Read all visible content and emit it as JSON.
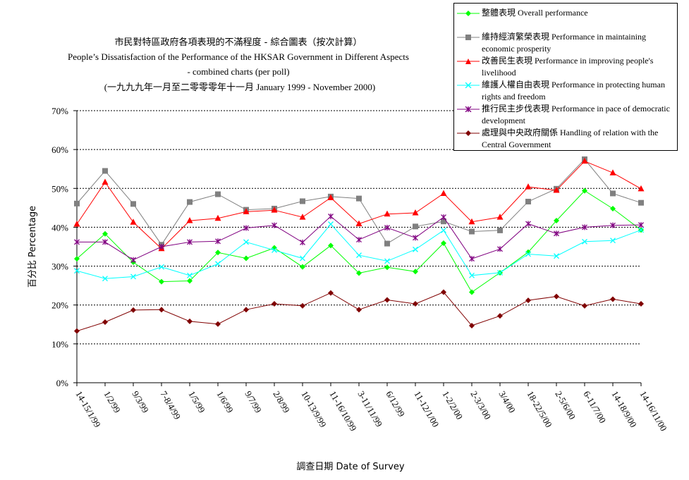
{
  "chart_data": {
    "type": "line",
    "title_lines": [
      "市民對特區政府各項表現的不滿程度  -  綜合圖表（按次計算）",
      "People’s Dissatisfaction of the Performance of the HKSAR Government in Different Aspects",
      "- combined charts  (per poll)",
      "(一九九九年一月至二零零零年十一月 January 1999 - November 2000)"
    ],
    "ylabel": "百分比 Percentage",
    "xlabel": "調查日期 Date of Survey",
    "ylim": [
      0,
      70
    ],
    "yticks": [
      "0%",
      "10%",
      "20%",
      "30%",
      "40%",
      "50%",
      "60%",
      "70%"
    ],
    "grid": "horizontal dotted",
    "legend_position": "top-right",
    "categories": [
      "14-15/1/99",
      "1/2/99",
      "9/3/99",
      "7-8/4/99",
      "1/5/99",
      "1/6/99",
      "9/7/99",
      "2/8/99",
      "10-13/9/99",
      "11-16/10/99",
      "3-11/11/99",
      "6/12/99",
      "11-12/1/00",
      "1-2/2/00",
      "2-3/3/00",
      "3/4/00",
      "18-22/5/00",
      "2-5/6/00",
      "6-11/7/00",
      "14-18/9/00",
      "14-16/11/00"
    ],
    "series": [
      {
        "name": "整體表現 Overall performance",
        "color": "#00ff00",
        "marker": "diamond",
        "values": [
          31.9,
          38.3,
          31.0,
          26.0,
          26.2,
          33.5,
          32.0,
          34.7,
          29.8,
          35.3,
          28.2,
          29.7,
          28.6,
          35.9,
          23.3,
          28.3,
          33.6,
          41.7,
          49.4,
          44.8,
          39.3
        ]
      },
      {
        "name": "維持經濟繁榮表現 Performance in maintaining economic prosperity",
        "color": "#808080",
        "marker": "square",
        "values": [
          46.1,
          54.5,
          46.0,
          35.5,
          46.5,
          48.5,
          44.5,
          44.8,
          46.7,
          47.9,
          47.4,
          35.8,
          40.2,
          41.5,
          38.9,
          39.2,
          46.6,
          49.9,
          57.5,
          48.7,
          46.3
        ]
      },
      {
        "name": "改善民生表現 Performance in improving people's livelihood",
        "color": "#ff0000",
        "marker": "triangle",
        "values": [
          40.8,
          51.6,
          41.3,
          34.5,
          41.7,
          42.3,
          44.0,
          44.4,
          42.6,
          47.6,
          40.9,
          43.4,
          43.7,
          48.7,
          41.4,
          42.6,
          50.4,
          49.5,
          57.0,
          54.0,
          49.9
        ]
      },
      {
        "name": "維護人權自由表現 Performance in protecting human rights and freedom",
        "color": "#00ffff",
        "marker": "x",
        "values": [
          28.8,
          26.8,
          27.3,
          29.8,
          27.6,
          30.6,
          36.2,
          34.1,
          32.0,
          40.8,
          32.8,
          31.3,
          34.3,
          39.2,
          27.6,
          28.3,
          33.1,
          32.6,
          36.3,
          36.6,
          39.3
        ]
      },
      {
        "name": "推行民主步伐表現 Performance in pace of democratic development",
        "color": "#800080",
        "marker": "star",
        "values": [
          36.2,
          36.2,
          31.6,
          35.0,
          36.2,
          36.4,
          39.8,
          40.5,
          36.1,
          42.8,
          36.8,
          39.9,
          37.3,
          42.6,
          31.9,
          34.4,
          40.9,
          38.4,
          40.0,
          40.5,
          40.6
        ]
      },
      {
        "name": "處理與中央政府關係 Handling of relation with the Central Government",
        "color": "#800000",
        "marker": "diamond",
        "values": [
          13.3,
          15.6,
          18.7,
          18.8,
          15.8,
          15.1,
          18.8,
          20.3,
          19.8,
          23.1,
          18.8,
          21.3,
          20.3,
          23.3,
          14.7,
          17.2,
          21.2,
          22.2,
          19.8,
          21.5,
          20.3
        ]
      }
    ]
  }
}
